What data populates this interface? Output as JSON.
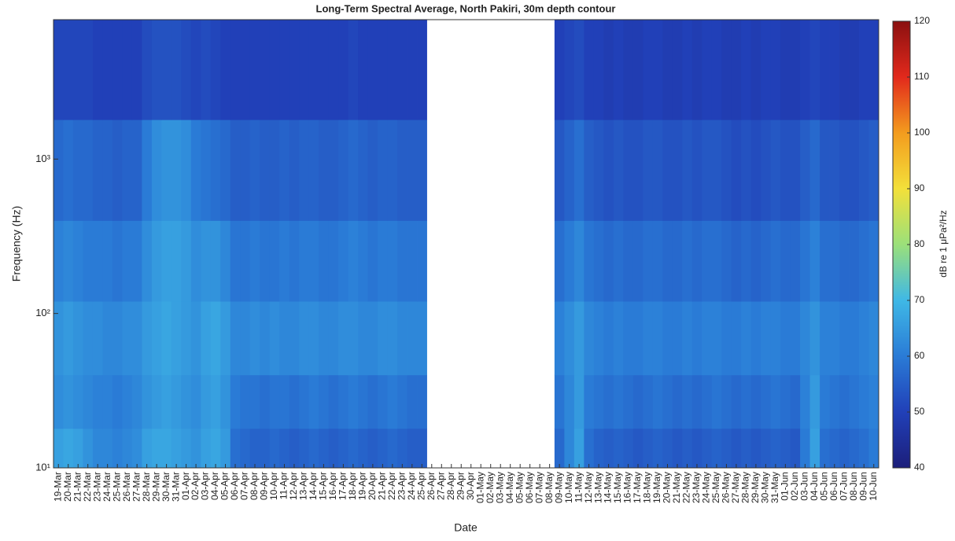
{
  "chart_data": {
    "type": "heatmap",
    "title": "Long-Term Spectral Average, North Pakiri, 30m depth contour",
    "x_label": "Date",
    "y_label": "Frequency (Hz)",
    "colorbar_label": "dB re 1 μPa²/Hz",
    "categories": [
      "19-Mar",
      "20-Mar",
      "21-Mar",
      "22-Mar",
      "23-Mar",
      "24-Mar",
      "25-Mar",
      "26-Mar",
      "27-Mar",
      "28-Mar",
      "29-Mar",
      "30-Mar",
      "31-Mar",
      "01-Apr",
      "02-Apr",
      "03-Apr",
      "04-Apr",
      "05-Apr",
      "06-Apr",
      "07-Apr",
      "08-Apr",
      "09-Apr",
      "10-Apr",
      "11-Apr",
      "12-Apr",
      "13-Apr",
      "14-Apr",
      "15-Apr",
      "16-Apr",
      "17-Apr",
      "18-Apr",
      "19-Apr",
      "20-Apr",
      "21-Apr",
      "22-Apr",
      "23-Apr",
      "24-Apr",
      "25-Apr",
      "26-Apr",
      "27-Apr",
      "28-Apr",
      "29-Apr",
      "30-Apr",
      "01-May",
      "02-May",
      "03-May",
      "04-May",
      "05-May",
      "06-May",
      "07-May",
      "08-May",
      "09-May",
      "10-May",
      "11-May",
      "12-May",
      "13-May",
      "14-May",
      "15-May",
      "16-May",
      "17-May",
      "18-May",
      "19-May",
      "20-May",
      "21-May",
      "22-May",
      "23-May",
      "24-May",
      "25-May",
      "26-May",
      "27-May",
      "28-May",
      "29-May",
      "30-May",
      "31-May",
      "01-Jun",
      "02-Jun",
      "03-Jun",
      "04-Jun",
      "05-Jun",
      "06-Jun",
      "07-Jun",
      "08-Jun",
      "09-Jun",
      "10-Jun"
    ],
    "y_bins": [
      10,
      18,
      40,
      120,
      400,
      1800,
      8000
    ],
    "z": [
      [
        66,
        67,
        66,
        64,
        62,
        62,
        61,
        62,
        63,
        66,
        67,
        67,
        66,
        65,
        64,
        66,
        67,
        65,
        58,
        57,
        56,
        56,
        57,
        56,
        55,
        56,
        57,
        56,
        55,
        56,
        57,
        56,
        55,
        56,
        57,
        56,
        55,
        55,
        null,
        null,
        null,
        null,
        null,
        null,
        null,
        null,
        null,
        null,
        null,
        null,
        null,
        57,
        62,
        66,
        58,
        56,
        55,
        56,
        55,
        54,
        55,
        56,
        55,
        54,
        55,
        54,
        55,
        56,
        55,
        54,
        55,
        54,
        55,
        56,
        55,
        54,
        60,
        66,
        58,
        57,
        56,
        57,
        58,
        60
      ],
      [
        63,
        64,
        63,
        62,
        61,
        61,
        60,
        61,
        62,
        64,
        65,
        66,
        65,
        64,
        63,
        65,
        66,
        64,
        60,
        59,
        59,
        58,
        59,
        59,
        58,
        59,
        60,
        59,
        58,
        59,
        60,
        59,
        58,
        59,
        60,
        59,
        58,
        58,
        null,
        null,
        null,
        null,
        null,
        null,
        null,
        null,
        null,
        null,
        null,
        null,
        null,
        59,
        62,
        65,
        60,
        59,
        58,
        59,
        58,
        57,
        58,
        59,
        58,
        57,
        58,
        57,
        58,
        59,
        58,
        57,
        58,
        57,
        58,
        59,
        58,
        57,
        61,
        65,
        60,
        59,
        58,
        59,
        60,
        61
      ],
      [
        64,
        65,
        64,
        63,
        63,
        62,
        62,
        63,
        63,
        65,
        66,
        67,
        66,
        65,
        64,
        66,
        67,
        65,
        62,
        62,
        63,
        62,
        63,
        62,
        62,
        63,
        63,
        62,
        62,
        63,
        63,
        62,
        62,
        63,
        63,
        62,
        62,
        62,
        null,
        null,
        null,
        null,
        null,
        null,
        null,
        null,
        null,
        null,
        null,
        null,
        null,
        61,
        63,
        65,
        62,
        61,
        60,
        61,
        60,
        60,
        61,
        61,
        60,
        60,
        61,
        60,
        61,
        61,
        60,
        60,
        61,
        60,
        61,
        61,
        60,
        60,
        62,
        64,
        61,
        61,
        60,
        60,
        61,
        62
      ],
      [
        61,
        62,
        61,
        60,
        60,
        60,
        59,
        60,
        60,
        63,
        65,
        66,
        66,
        65,
        63,
        64,
        64,
        62,
        59,
        59,
        60,
        59,
        59,
        60,
        59,
        60,
        60,
        59,
        59,
        60,
        61,
        60,
        59,
        60,
        60,
        59,
        59,
        59,
        null,
        null,
        null,
        null,
        null,
        null,
        null,
        null,
        null,
        null,
        null,
        null,
        null,
        58,
        60,
        62,
        59,
        58,
        57,
        58,
        57,
        57,
        58,
        58,
        57,
        57,
        58,
        57,
        58,
        58,
        57,
        56,
        57,
        56,
        57,
        58,
        57,
        57,
        59,
        61,
        58,
        58,
        57,
        57,
        58,
        59
      ],
      [
        57,
        58,
        57,
        57,
        56,
        56,
        55,
        56,
        56,
        60,
        63,
        64,
        64,
        63,
        60,
        59,
        58,
        57,
        55,
        55,
        56,
        55,
        55,
        56,
        55,
        56,
        56,
        55,
        55,
        56,
        57,
        56,
        55,
        56,
        56,
        55,
        55,
        55,
        null,
        null,
        null,
        null,
        null,
        null,
        null,
        null,
        null,
        null,
        null,
        null,
        null,
        54,
        56,
        58,
        55,
        54,
        53,
        54,
        53,
        53,
        54,
        54,
        53,
        53,
        54,
        53,
        54,
        54,
        53,
        52,
        53,
        52,
        53,
        54,
        53,
        53,
        55,
        57,
        54,
        54,
        53,
        53,
        54,
        55
      ],
      [
        51,
        51,
        51,
        51,
        50,
        50,
        50,
        50,
        50,
        52,
        53,
        53,
        53,
        52,
        51,
        52,
        51,
        50,
        50,
        50,
        50,
        50,
        50,
        50,
        50,
        50,
        50,
        50,
        50,
        50,
        51,
        50,
        50,
        50,
        50,
        50,
        50,
        50,
        null,
        null,
        null,
        null,
        null,
        null,
        null,
        null,
        null,
        null,
        null,
        null,
        null,
        50,
        51,
        52,
        50,
        50,
        49,
        50,
        49,
        49,
        50,
        50,
        49,
        49,
        50,
        49,
        50,
        50,
        49,
        49,
        50,
        49,
        50,
        50,
        49,
        49,
        50,
        51,
        50,
        50,
        49,
        49,
        50,
        50
      ]
    ],
    "ylim": [
      10,
      8000
    ],
    "log_y": true,
    "yticks": [
      {
        "value": 10,
        "label": "10¹"
      },
      {
        "value": 100,
        "label": "10²"
      },
      {
        "value": 1000,
        "label": "10³"
      }
    ],
    "clim": [
      40,
      120
    ],
    "cticks": [
      40,
      50,
      60,
      70,
      80,
      90,
      100,
      110,
      120
    ],
    "colormap": [
      "#1c1e7a",
      "#2140b8",
      "#2a7bd6",
      "#3fb8e6",
      "#9be07a",
      "#f3e03a",
      "#f39c1e",
      "#e2291c",
      "#8a1010"
    ]
  }
}
